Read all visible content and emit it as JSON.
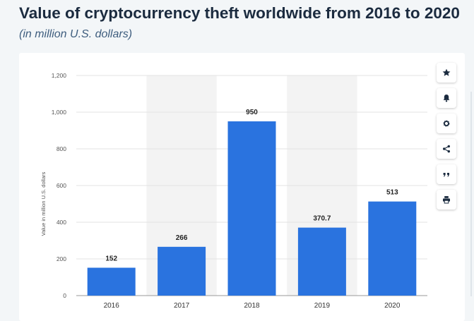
{
  "header": {
    "title": "Value of cryptocurrency theft worldwide from 2016 to 2020",
    "subtitle": "(in million U.S. dollars)"
  },
  "toolbar": {
    "buttons": [
      {
        "icon": "star-icon"
      },
      {
        "icon": "bell-icon"
      },
      {
        "icon": "gear-icon"
      },
      {
        "icon": "share-icon"
      },
      {
        "icon": "quote-icon"
      },
      {
        "icon": "print-icon"
      }
    ]
  },
  "colors": {
    "bar": "#2a73df",
    "band": "#f3f3f3",
    "title": "#1b2b3f",
    "subtitle": "#3e5d7e",
    "toolbar_icon": "#1b2b3f"
  },
  "chart_data": {
    "type": "bar",
    "categories": [
      "2016",
      "2017",
      "2018",
      "2019",
      "2020"
    ],
    "values": [
      152,
      266,
      950,
      370.7,
      513
    ],
    "value_labels": [
      "152",
      "266",
      "950",
      "370.7",
      "513"
    ],
    "ylabel": "Value in million U.S. dollars",
    "xlabel": "",
    "ylim": [
      0,
      1200
    ],
    "yticks": [
      0,
      200,
      400,
      600,
      800,
      1000,
      1200
    ],
    "ytick_labels": [
      "0",
      "200",
      "400",
      "600",
      "800",
      "1,000",
      "1,200"
    ],
    "grid": true,
    "alternating_bands": true
  }
}
